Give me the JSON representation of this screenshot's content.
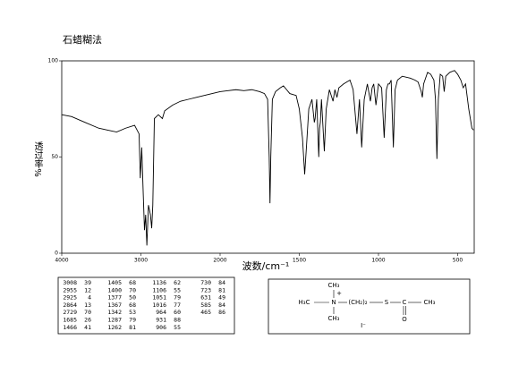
{
  "chart_data": {
    "type": "line",
    "title": "石蜡糊法",
    "xlabel": "波数/cm⁻¹",
    "ylabel": "透过率%",
    "color": "#000000",
    "xlim": [
      4000,
      400
    ],
    "ylim": [
      0,
      100
    ],
    "xticks": [
      4000,
      3000,
      2000,
      1500,
      1000,
      500
    ],
    "yticks": [
      0,
      50,
      100
    ],
    "x": [
      4000,
      3875,
      3705,
      3534,
      3420,
      3307,
      3193,
      3080,
      3023,
      3008,
      2990,
      2970,
      2955,
      2940,
      2925,
      2905,
      2880,
      2864,
      2850,
      2830,
      2780,
      2729,
      2700,
      2600,
      2500,
      2400,
      2300,
      2200,
      2100,
      2000,
      1900,
      1850,
      1800,
      1750,
      1720,
      1700,
      1690,
      1685,
      1680,
      1670,
      1650,
      1620,
      1600,
      1580,
      1560,
      1520,
      1500,
      1480,
      1466,
      1455,
      1440,
      1420,
      1405,
      1400,
      1390,
      1377,
      1372,
      1367,
      1360,
      1342,
      1330,
      1310,
      1287,
      1275,
      1262,
      1250,
      1220,
      1200,
      1180,
      1160,
      1136,
      1120,
      1106,
      1090,
      1070,
      1051,
      1040,
      1030,
      1016,
      1000,
      980,
      964,
      950,
      940,
      931,
      920,
      906,
      895,
      880,
      850,
      800,
      770,
      750,
      730,
      723,
      715,
      690,
      670,
      650,
      640,
      631,
      622,
      610,
      595,
      585,
      575,
      550,
      520,
      500,
      480,
      465,
      450,
      430,
      410,
      400
    ],
    "values": [
      72,
      71,
      68,
      65,
      64,
      63,
      65,
      66.5,
      62,
      39,
      55,
      30,
      12,
      20,
      4,
      25,
      20,
      13,
      25,
      70,
      72,
      70,
      74,
      77,
      79,
      80,
      81,
      82,
      83,
      84,
      85,
      84.5,
      85,
      84,
      83,
      80,
      50,
      26,
      50,
      80,
      84,
      86,
      87,
      85,
      83,
      82,
      75,
      60,
      41,
      55,
      75,
      80,
      68,
      70,
      80,
      50,
      65,
      68,
      80,
      53,
      75,
      85,
      79,
      85,
      81,
      86,
      88,
      89,
      90,
      85,
      62,
      80,
      55,
      80,
      88,
      79,
      86,
      88,
      77,
      88,
      86,
      60,
      85,
      88,
      88,
      90,
      55,
      85,
      90,
      92,
      91,
      90,
      89,
      84,
      81,
      88,
      94,
      93,
      90,
      80,
      49,
      80,
      93,
      92,
      84,
      92,
      94,
      95,
      93,
      90,
      86,
      88,
      75,
      65,
      64
    ]
  },
  "peak_table": [
    [
      [
        3008,
        39
      ],
      [
        2955,
        12
      ],
      [
        2925,
        4
      ],
      [
        2864,
        13
      ],
      [
        2729,
        70
      ],
      [
        1685,
        26
      ],
      [
        1466,
        41
      ]
    ],
    [
      [
        1405,
        68
      ],
      [
        1400,
        70
      ],
      [
        1377,
        50
      ],
      [
        1367,
        68
      ],
      [
        1342,
        53
      ],
      [
        1287,
        79
      ],
      [
        1262,
        81
      ]
    ],
    [
      [
        1136,
        62
      ],
      [
        1106,
        55
      ],
      [
        1051,
        79
      ],
      [
        1016,
        77
      ],
      [
        964,
        60
      ],
      [
        931,
        88
      ],
      [
        906,
        55
      ]
    ],
    [
      [
        730,
        84
      ],
      [
        723,
        81
      ],
      [
        631,
        49
      ],
      [
        585,
        84
      ],
      [
        465,
        86
      ]
    ]
  ],
  "structure": {
    "labels": [
      "CH₃",
      "+",
      "H₃C",
      "N",
      "(CH₂)₂",
      "S",
      "C",
      "CH₃",
      "O",
      "CH₃",
      "I⁻"
    ]
  }
}
